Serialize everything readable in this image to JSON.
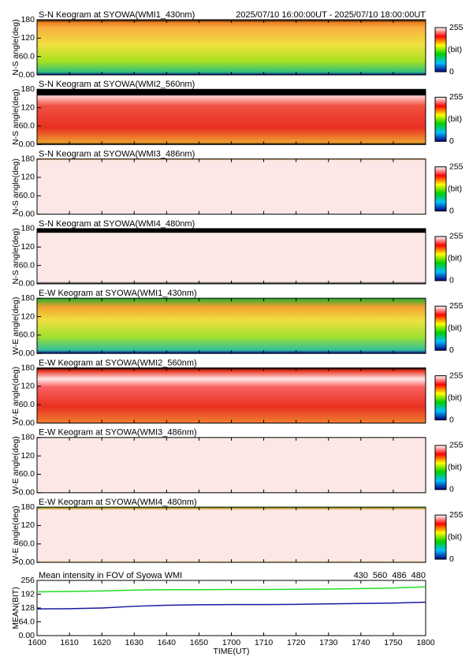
{
  "chart_data": [
    {
      "type": "heatmap",
      "title": "S-N Keogram at SYOWA(WMI1_430nm)",
      "subtitle": "2025/07/10 16:00:00UT - 2025/07/10 18:00:00UT",
      "ylabel": "N-S angle(deg)",
      "ylim": [
        0,
        180
      ],
      "yticks": [
        {
          "value": 0,
          "label": "0.00"
        },
        {
          "value": 60,
          "label": "60.0"
        },
        120,
        180
      ],
      "colorbar": {
        "ticks": [
          0,
          255
        ],
        "label": "(bit)"
      }
    },
    {
      "type": "heatmap",
      "title": "S-N Keogram at SYOWA(WMI2_560nm)",
      "ylabel": "N-S angle(deg)",
      "ylim": [
        0,
        180
      ],
      "yticks": [
        {
          "value": 0,
          "label": "0.00"
        },
        {
          "value": 60,
          "label": "60.0"
        },
        120,
        180
      ],
      "colorbar": {
        "ticks": [
          0,
          255
        ],
        "label": "(bit)"
      }
    },
    {
      "type": "heatmap",
      "title": "S-N Keogram at SYOWA(WMI3_486nm)",
      "ylabel": "N-S angle(deg)",
      "ylim": [
        0,
        180
      ],
      "yticks": [
        {
          "value": 0,
          "label": "0.00"
        },
        {
          "value": 60,
          "label": "60.0"
        },
        120,
        180
      ],
      "colorbar": {
        "ticks": [
          0,
          255
        ],
        "label": "(bit)"
      }
    },
    {
      "type": "heatmap",
      "title": "S-N Keogram at SYOWA(WMI4_480nm)",
      "ylabel": "N-S angle(deg)",
      "ylim": [
        0,
        180
      ],
      "yticks": [
        {
          "value": 0,
          "label": "0.00"
        },
        {
          "value": 60,
          "label": "60.0"
        },
        120,
        180
      ],
      "colorbar": {
        "ticks": [
          0,
          255
        ],
        "label": "(bit)"
      }
    },
    {
      "type": "heatmap",
      "title": "E-W Keogram at SYOWA(WMI1_430nm)",
      "ylabel": "W-E angle(deg)",
      "ylim": [
        0,
        180
      ],
      "yticks": [
        {
          "value": 0,
          "label": "0.00"
        },
        {
          "value": 60,
          "label": "60.0"
        },
        120,
        180
      ],
      "colorbar": {
        "ticks": [
          0,
          255
        ],
        "label": "(bit)"
      }
    },
    {
      "type": "heatmap",
      "title": "E-W Keogram at SYOWA(WMI2_560nm)",
      "ylabel": "W-E angle(deg)",
      "ylim": [
        0,
        180
      ],
      "yticks": [
        {
          "value": 0,
          "label": "0.00"
        },
        {
          "value": 60,
          "label": "60.0"
        },
        120,
        180
      ],
      "colorbar": {
        "ticks": [
          0,
          255
        ],
        "label": "(bit)"
      }
    },
    {
      "type": "heatmap",
      "title": "E-W Keogram at SYOWA(WMI3_486nm)",
      "ylabel": "W-E angle(deg)",
      "ylim": [
        0,
        180
      ],
      "yticks": [
        {
          "value": 0,
          "label": "0.00"
        },
        {
          "value": 60,
          "label": "60.0"
        },
        120,
        180
      ],
      "colorbar": {
        "ticks": [
          0,
          255
        ],
        "label": "(bit)"
      }
    },
    {
      "type": "heatmap",
      "title": "E-W Keogram at SYOWA(WMI4_480nm)",
      "ylabel": "W-E angle(deg)",
      "ylim": [
        0,
        180
      ],
      "yticks": [
        {
          "value": 0,
          "label": "0.00"
        },
        {
          "value": 60,
          "label": "60.0"
        },
        120,
        180
      ],
      "colorbar": {
        "ticks": [
          0,
          255
        ],
        "label": "(bit)"
      }
    },
    {
      "type": "line",
      "title": "Mean intensity in FOV of Syowa WMI",
      "ylabel": "MEAN(BIT)",
      "xlabel": "TIME(UT)",
      "x": [
        "1600",
        "1610",
        "1620",
        "1630",
        "1640",
        "1650",
        "1700",
        "1710",
        "1720",
        "1730",
        "1740",
        "1750",
        "1800"
      ],
      "ylim": [
        0,
        256
      ],
      "yticks": [
        {
          "value": 0,
          "label": "0.00"
        },
        {
          "value": 64,
          "label": "64.0"
        },
        128,
        192,
        256
      ],
      "series": [
        {
          "name": "430",
          "color": "#1a1aa0",
          "values": [
            124,
            125,
            128,
            136,
            141,
            143,
            144,
            144,
            145,
            147,
            149,
            151,
            155
          ]
        },
        {
          "name": "560",
          "color": "#22dd22",
          "values": [
            203,
            205,
            207,
            211,
            213,
            213,
            214,
            214,
            215,
            216,
            218,
            221,
            226
          ]
        },
        {
          "name": "486",
          "color": "#cc2222",
          "values": [
            null,
            null,
            null,
            null,
            null,
            null,
            null,
            null,
            null,
            null,
            null,
            null,
            null
          ]
        },
        {
          "name": "480",
          "color": "#000000",
          "values": [
            null,
            null,
            null,
            null,
            null,
            null,
            null,
            null,
            null,
            null,
            null,
            null,
            null
          ]
        }
      ]
    }
  ]
}
